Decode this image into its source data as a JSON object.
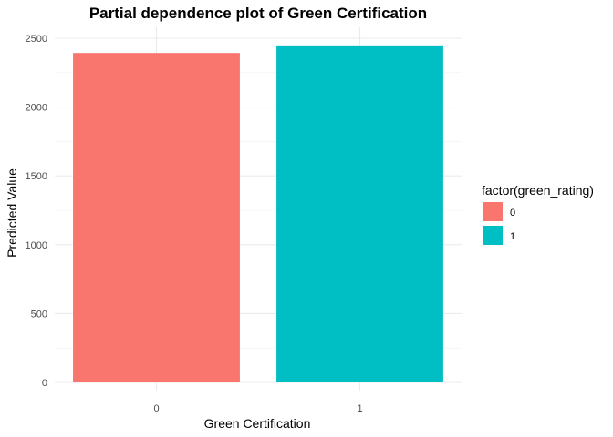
{
  "chart_data": {
    "type": "bar",
    "title": "Partial dependence plot of Green Certification",
    "xlabel": "Green Certification",
    "ylabel": "Predicted Value",
    "categories": [
      "0",
      "1"
    ],
    "values": [
      2393,
      2448
    ],
    "colors": [
      "#F8766D",
      "#00BFC4"
    ],
    "ylim": [
      0,
      2500
    ],
    "yticks": [
      "0",
      "500",
      "1000",
      "1500",
      "2000",
      "2500"
    ],
    "grid": true,
    "legend": {
      "title": "factor(green_rating)",
      "placement": "right",
      "entries": [
        "0",
        "1"
      ]
    }
  }
}
